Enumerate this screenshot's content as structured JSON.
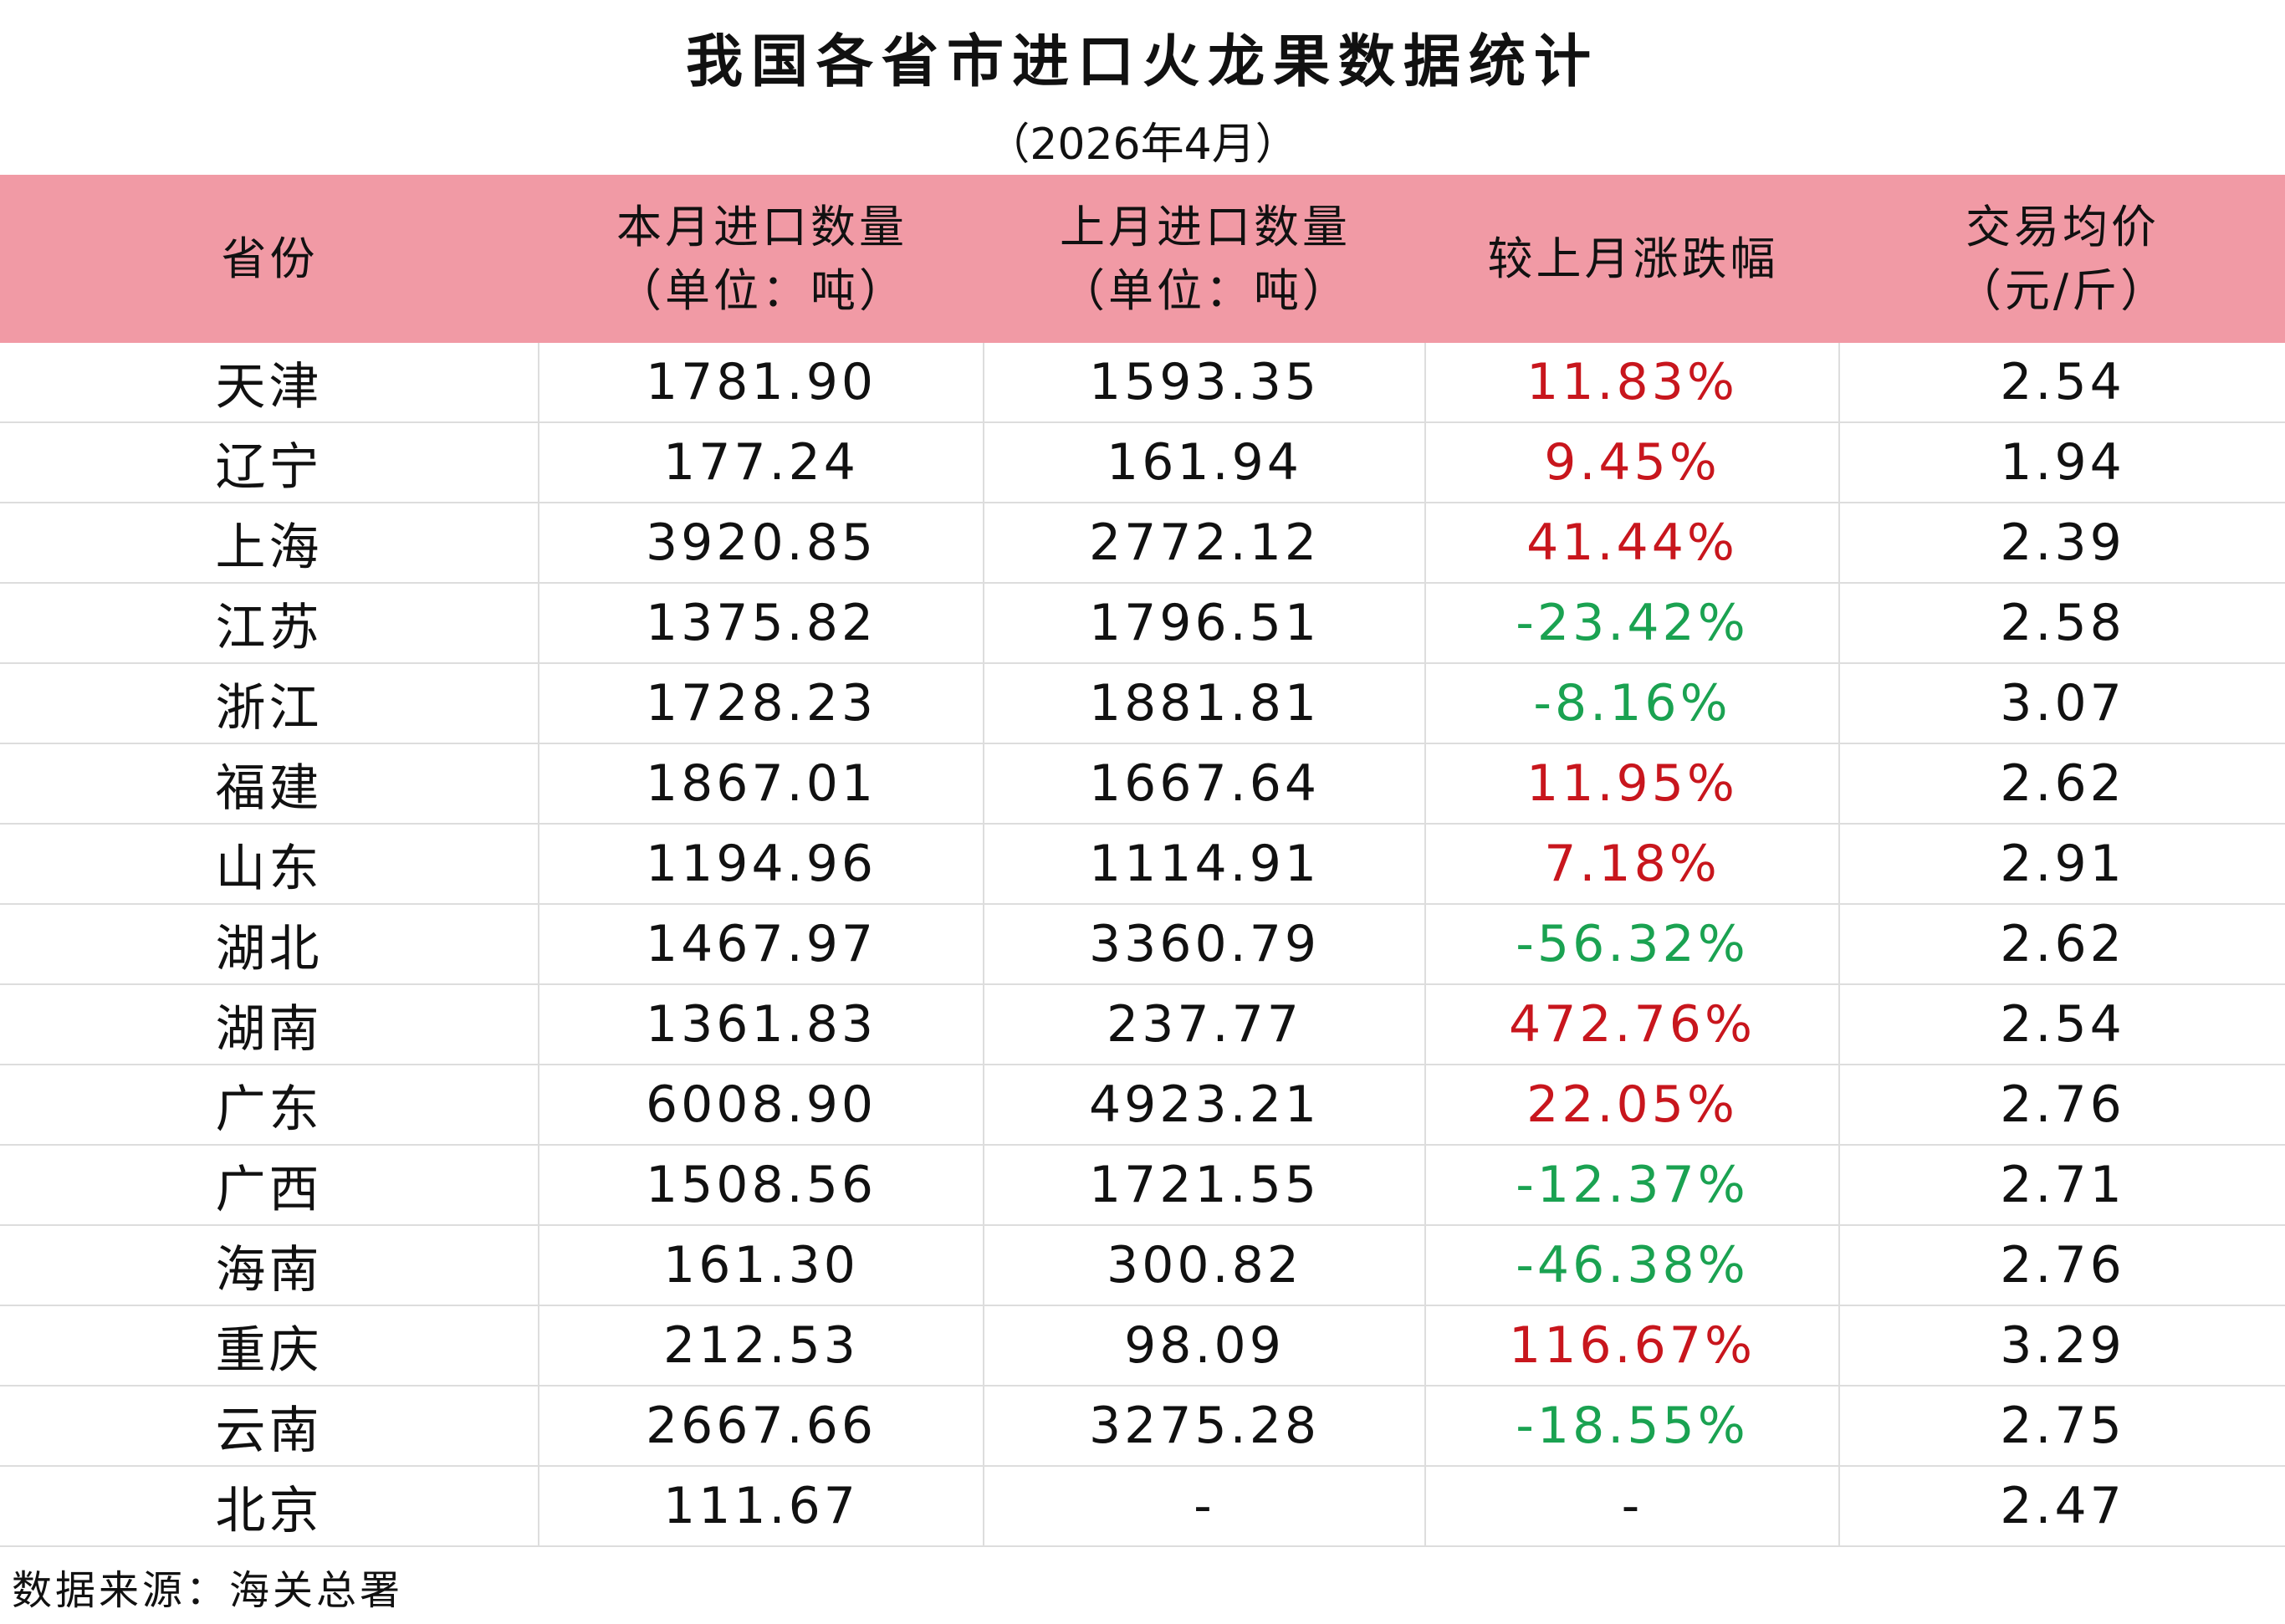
{
  "header": {
    "title": "我国各省市进口火龙果数据统计",
    "subtitle": "（2026年4月）"
  },
  "table": {
    "columns": [
      [
        "省份"
      ],
      [
        "本月进口数量",
        "（单位：吨）"
      ],
      [
        "上月进口数量",
        "（单位：吨）"
      ],
      [
        "较上月涨跌幅"
      ],
      [
        "交易均价",
        "（元/斤）"
      ]
    ],
    "rows": [
      [
        "天津",
        "1781.90",
        "1593.35",
        "11.83%",
        "2.54"
      ],
      [
        "辽宁",
        "177.24",
        "161.94",
        "9.45%",
        "1.94"
      ],
      [
        "上海",
        "3920.85",
        "2772.12",
        "41.44%",
        "2.39"
      ],
      [
        "江苏",
        "1375.82",
        "1796.51",
        "-23.42%",
        "2.58"
      ],
      [
        "浙江",
        "1728.23",
        "1881.81",
        "-8.16%",
        "3.07"
      ],
      [
        "福建",
        "1867.01",
        "1667.64",
        "11.95%",
        "2.62"
      ],
      [
        "山东",
        "1194.96",
        "1114.91",
        "7.18%",
        "2.91"
      ],
      [
        "湖北",
        "1467.97",
        "3360.79",
        "-56.32%",
        "2.62"
      ],
      [
        "湖南",
        "1361.83",
        "237.77",
        "472.76%",
        "2.54"
      ],
      [
        "广东",
        "6008.90",
        "4923.21",
        "22.05%",
        "2.76"
      ],
      [
        "广西",
        "1508.56",
        "1721.55",
        "-12.37%",
        "2.71"
      ],
      [
        "海南",
        "161.30",
        "300.82",
        "-46.38%",
        "2.76"
      ],
      [
        "重庆",
        "212.53",
        "98.09",
        "116.67%",
        "3.29"
      ],
      [
        "云南",
        "2667.66",
        "3275.28",
        "-18.55%",
        "2.75"
      ],
      [
        "北京",
        "111.67",
        "-",
        "-",
        "2.47"
      ]
    ]
  },
  "footer": {
    "source": "数据来源：海关总署"
  }
}
